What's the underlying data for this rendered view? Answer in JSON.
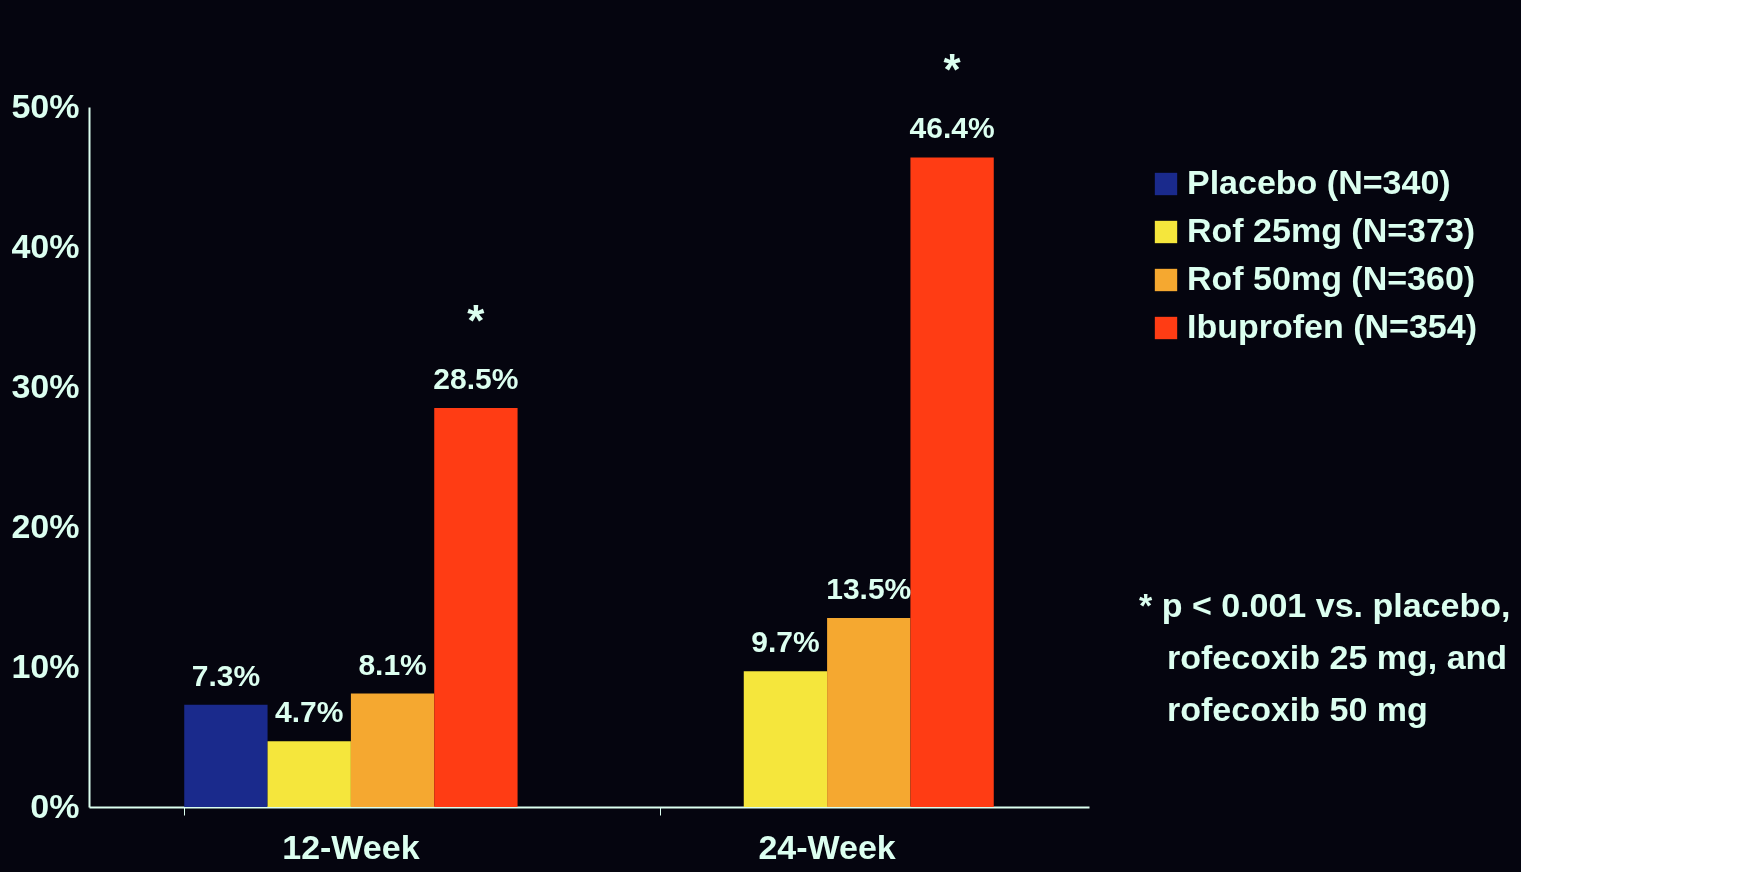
{
  "chart_data": {
    "type": "bar",
    "categories": [
      "12-Week",
      "24-Week"
    ],
    "series": [
      {
        "name": "Placebo (N=340)",
        "color": "#1a2a8c",
        "values": [
          7.3,
          null
        ],
        "value_labels": [
          "7.3%",
          null
        ]
      },
      {
        "name": "Rof 25mg (N=373)",
        "color": "#f5e63c",
        "values": [
          4.7,
          9.7
        ],
        "value_labels": [
          "4.7%",
          "9.7%"
        ]
      },
      {
        "name": "Rof 50mg (N=360)",
        "color": "#f5a830",
        "values": [
          8.1,
          13.5
        ],
        "value_labels": [
          "8.1%",
          "13.5%"
        ]
      },
      {
        "name": "Ibuprofen (N=354)",
        "color": "#ff3c14",
        "values": [
          28.5,
          46.4
        ],
        "value_labels": [
          "28.5%",
          "46.4%"
        ]
      }
    ],
    "ylim": [
      0,
      50
    ],
    "yticks": [
      {
        "value": 0,
        "label": "0%"
      },
      {
        "value": 10,
        "label": "10%"
      },
      {
        "value": 20,
        "label": "20%"
      },
      {
        "value": 30,
        "label": "30%"
      },
      {
        "value": 40,
        "label": "40%"
      },
      {
        "value": 50,
        "label": "50%"
      }
    ],
    "grid": false,
    "legend": "right",
    "annotations": [
      "*",
      "*",
      "* p < 0.001 vs. placebo, rofecoxib 25 mg, and rofecoxib 50 mg"
    ]
  }
}
